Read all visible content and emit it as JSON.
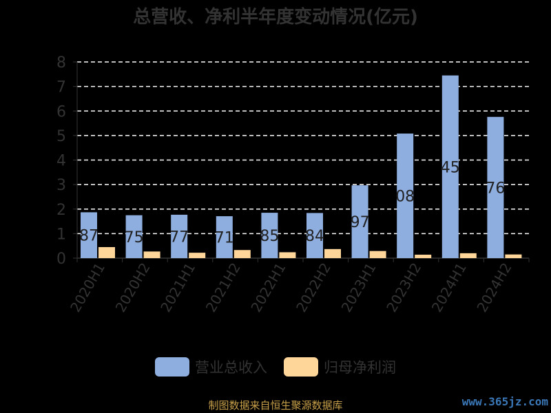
{
  "title": "总营收、净利半年度变动情况(亿元)",
  "legend": [
    {
      "label": "营业总收入",
      "color": "#8eaee0"
    },
    {
      "label": "归母净利润",
      "color": "#ffd699"
    }
  ],
  "source": "制图数据来自恒生聚源数据库",
  "watermark": "www.365jz.com",
  "chart_data": {
    "type": "bar",
    "categories": [
      "2020H1",
      "2020H2",
      "2021H1",
      "2021H2",
      "2022H1",
      "2022H2",
      "2023H1",
      "2023H2",
      "2024H1",
      "2024H2"
    ],
    "ylim": [
      0,
      8
    ],
    "yticks": [
      0,
      1,
      2,
      3,
      4,
      5,
      6,
      7,
      8
    ],
    "grid": true,
    "legend_position": "bottom",
    "series": [
      {
        "name": "营业总收入",
        "color": "#8eaee0",
        "values": [
          1.87,
          1.75,
          1.77,
          1.71,
          1.85,
          1.84,
          2.97,
          5.08,
          7.45,
          5.76
        ],
        "data_labels": [
          "87",
          "75",
          "77",
          "71",
          "85",
          "84",
          "97",
          "08",
          "45",
          "76"
        ]
      },
      {
        "name": "归母净利润",
        "color": "#ffd699",
        "values": [
          0.45,
          0.27,
          0.22,
          0.33,
          0.24,
          0.37,
          0.29,
          0.14,
          0.2,
          0.15
        ]
      }
    ]
  }
}
